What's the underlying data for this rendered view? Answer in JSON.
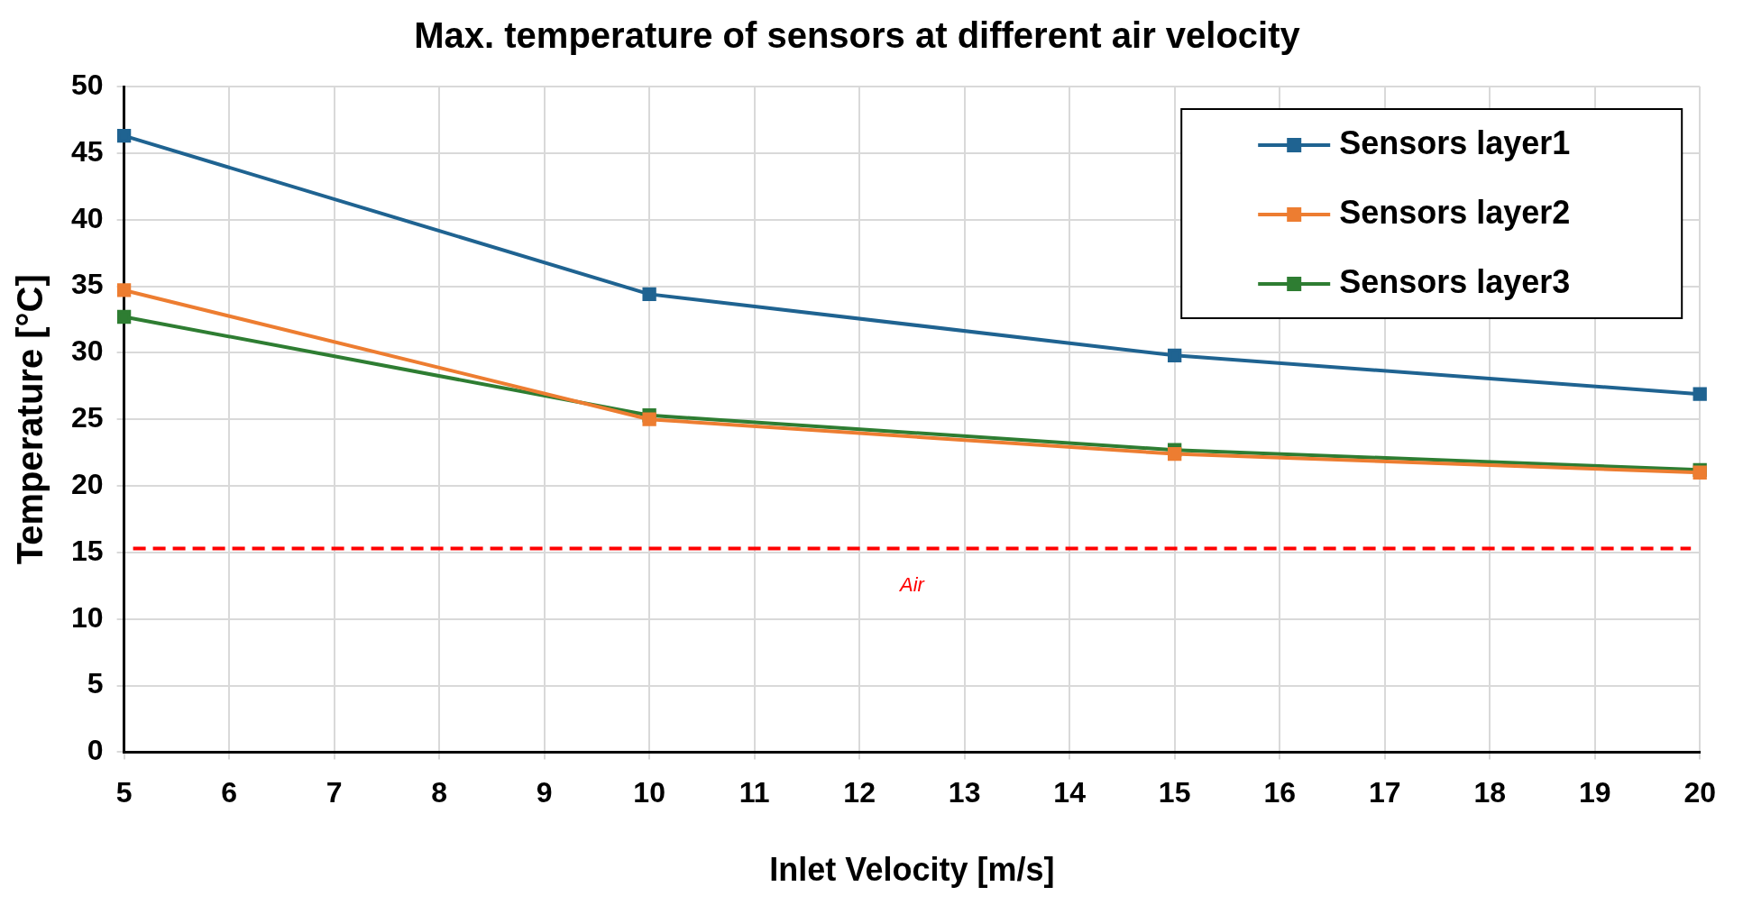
{
  "chart_data": {
    "type": "line",
    "title": "Max. temperature of sensors at different air velocity",
    "xlabel": "Inlet Velocity [m/s]",
    "ylabel": "Temperature [°C]",
    "x": [
      5,
      10,
      15,
      20
    ],
    "series": [
      {
        "name": "Sensors layer1",
        "color": "#1f6391",
        "values": [
          46.3,
          34.4,
          29.8,
          26.9
        ]
      },
      {
        "name": "Sensors layer2",
        "color": "#ed7d31",
        "values": [
          34.7,
          25.0,
          22.4,
          21.0
        ]
      },
      {
        "name": "Sensors layer3",
        "color": "#2e7d32",
        "values": [
          32.7,
          25.3,
          22.7,
          21.2
        ]
      }
    ],
    "xlim": [
      5,
      20
    ],
    "xticks": [
      5,
      6,
      7,
      8,
      9,
      10,
      11,
      12,
      13,
      14,
      15,
      16,
      17,
      18,
      19,
      20
    ],
    "ylim": [
      0,
      50
    ],
    "yticks": [
      0,
      5,
      10,
      15,
      20,
      25,
      30,
      35,
      40,
      45,
      50
    ],
    "ref_lines": [
      {
        "axis": "y",
        "value": 15.3,
        "label": "Air",
        "color": "#ff0000",
        "line_style": "dashed"
      }
    ],
    "grid": true,
    "legend": "top right",
    "marker": "square",
    "line_style": "solid"
  }
}
